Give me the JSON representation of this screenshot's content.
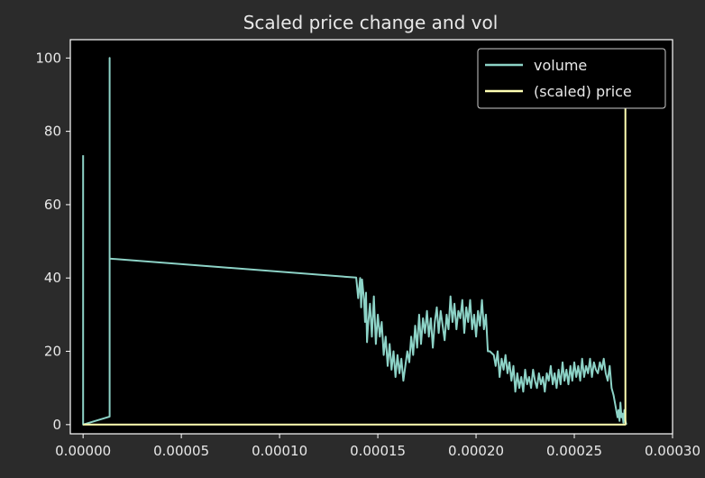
{
  "chart_data": {
    "type": "line",
    "title": "Scaled price change and vol",
    "xlabel": "",
    "ylabel": "",
    "xlim": [
      -6.5e-06,
      0.0003
    ],
    "ylim": [
      -2.5,
      105
    ],
    "grid": false,
    "legend_position": "top-right",
    "x_ticks": [
      0,
      5e-05,
      0.0001,
      0.00015,
      0.0002,
      0.00025,
      0.0003
    ],
    "x_tick_labels": [
      "0.00000",
      "0.00005",
      "0.00010",
      "0.00015",
      "0.00020",
      "0.00025",
      "0.00030"
    ],
    "y_ticks": [
      0,
      20,
      40,
      60,
      80,
      100
    ],
    "y_tick_labels": [
      "0",
      "20",
      "40",
      "60",
      "80",
      "100"
    ],
    "colors": {
      "figure_background": "#2b2b2b",
      "axes_background": "#000000",
      "axes_edge": "#ffffff",
      "text": "#e8e8e8"
    },
    "series": [
      {
        "name": "volume",
        "color": "#8dd3c7",
        "points": [
          [
            0,
            73.5
          ],
          [
            0,
            0
          ],
          [
            1.35e-05,
            2.2
          ],
          [
            1.35e-05,
            100
          ],
          [
            1.35e-05,
            45.3
          ],
          [
            0.000139,
            40.1
          ],
          [
            0.00014,
            34.5
          ],
          [
            0.000141,
            40
          ],
          [
            0.0001415,
            32
          ],
          [
            0.000142,
            39.6
          ],
          [
            0.000143,
            34
          ],
          [
            0.0001435,
            28
          ],
          [
            0.000144,
            36
          ],
          [
            0.0001445,
            22.5
          ],
          [
            0.000145,
            27
          ],
          [
            0.000146,
            33
          ],
          [
            0.000147,
            24
          ],
          [
            0.000148,
            35
          ],
          [
            0.000149,
            22
          ],
          [
            0.00015,
            30
          ],
          [
            0.000151,
            24
          ],
          [
            0.000152,
            28
          ],
          [
            0.000153,
            19
          ],
          [
            0.000154,
            24
          ],
          [
            0.000155,
            16
          ],
          [
            0.000156,
            22
          ],
          [
            0.000157,
            15
          ],
          [
            0.000158,
            20
          ],
          [
            0.000159,
            13
          ],
          [
            0.00016,
            19
          ],
          [
            0.000161,
            14
          ],
          [
            0.000162,
            18
          ],
          [
            0.000163,
            12
          ],
          [
            0.000164,
            16
          ],
          [
            0.000165,
            20
          ],
          [
            0.000166,
            17
          ],
          [
            0.000167,
            24
          ],
          [
            0.000168,
            19
          ],
          [
            0.000169,
            27
          ],
          [
            0.00017,
            21
          ],
          [
            0.000171,
            30
          ],
          [
            0.000172,
            22
          ],
          [
            0.000173,
            29
          ],
          [
            0.000174,
            25
          ],
          [
            0.000175,
            31
          ],
          [
            0.000176,
            24
          ],
          [
            0.000177,
            29
          ],
          [
            0.000178,
            21
          ],
          [
            0.000179,
            28
          ],
          [
            0.00018,
            32
          ],
          [
            0.000181,
            25
          ],
          [
            0.000182,
            31
          ],
          [
            0.000183,
            27
          ],
          [
            0.000184,
            23
          ],
          [
            0.000185,
            30
          ],
          [
            0.000186,
            26
          ],
          [
            0.000187,
            35
          ],
          [
            0.000188,
            28
          ],
          [
            0.000189,
            33
          ],
          [
            0.00019,
            26
          ],
          [
            0.000191,
            31
          ],
          [
            0.000192,
            29
          ],
          [
            0.000193,
            34
          ],
          [
            0.000194,
            25
          ],
          [
            0.000195,
            32
          ],
          [
            0.000196,
            28
          ],
          [
            0.000197,
            34
          ],
          [
            0.000198,
            26
          ],
          [
            0.000199,
            30
          ],
          [
            0.0002,
            24
          ],
          [
            0.000201,
            31
          ],
          [
            0.000202,
            27
          ],
          [
            0.000203,
            34
          ],
          [
            0.000204,
            26
          ],
          [
            0.000205,
            30
          ],
          [
            0.000206,
            20
          ],
          [
            0.000207,
            20
          ],
          [
            0.000209,
            19
          ],
          [
            0.00021,
            16
          ],
          [
            0.000211,
            20
          ],
          [
            0.000212,
            13
          ],
          [
            0.000213,
            18
          ],
          [
            0.000214,
            15
          ],
          [
            0.000215,
            19
          ],
          [
            0.000216,
            14
          ],
          [
            0.000217,
            17
          ],
          [
            0.000218,
            12
          ],
          [
            0.000219,
            16
          ],
          [
            0.00022,
            9
          ],
          [
            0.000221,
            14
          ],
          [
            0.000222,
            10
          ],
          [
            0.000223,
            13
          ],
          [
            0.000224,
            9
          ],
          [
            0.000225,
            15
          ],
          [
            0.000226,
            11
          ],
          [
            0.000227,
            13
          ],
          [
            0.000228,
            10
          ],
          [
            0.000229,
            15
          ],
          [
            0.00023,
            12
          ],
          [
            0.000231,
            10
          ],
          [
            0.000232,
            14
          ],
          [
            0.000233,
            11
          ],
          [
            0.000234,
            13
          ],
          [
            0.000235,
            9
          ],
          [
            0.000236,
            14
          ],
          [
            0.000237,
            12
          ],
          [
            0.000238,
            16
          ],
          [
            0.000239,
            11
          ],
          [
            0.00024,
            14
          ],
          [
            0.000241,
            10
          ],
          [
            0.000242,
            15
          ],
          [
            0.000243,
            11
          ],
          [
            0.000244,
            17
          ],
          [
            0.000245,
            12
          ],
          [
            0.000246,
            15
          ],
          [
            0.000247,
            11
          ],
          [
            0.000248,
            16
          ],
          [
            0.000249,
            12
          ],
          [
            0.00025,
            17
          ],
          [
            0.000251,
            13
          ],
          [
            0.000252,
            16
          ],
          [
            0.000253,
            12
          ],
          [
            0.000254,
            18
          ],
          [
            0.000255,
            13
          ],
          [
            0.000256,
            16
          ],
          [
            0.000257,
            14
          ],
          [
            0.000258,
            18
          ],
          [
            0.000259,
            13
          ],
          [
            0.00026,
            17
          ],
          [
            0.000261,
            15
          ],
          [
            0.000262,
            14
          ],
          [
            0.000263,
            17
          ],
          [
            0.000264,
            15
          ],
          [
            0.000265,
            18
          ],
          [
            0.000266,
            14
          ],
          [
            0.000267,
            12
          ],
          [
            0.000268,
            16
          ],
          [
            0.000269,
            10
          ],
          [
            0.00027,
            8
          ],
          [
            0.000271,
            5
          ],
          [
            0.000272,
            2
          ],
          [
            0.0002725,
            4
          ],
          [
            0.000273,
            1
          ],
          [
            0.0002735,
            6
          ],
          [
            0.000274,
            2
          ],
          [
            0.0002745,
            3
          ],
          [
            0.000275,
            0.5
          ],
          [
            0.0002755,
            4
          ],
          [
            0.000276,
            1
          ],
          [
            0.0002765,
            0
          ]
        ]
      },
      {
        "name": "(scaled) price",
        "color": "#ffffb3",
        "points": [
          [
            0,
            0
          ],
          [
            0.000276,
            0
          ],
          [
            0.000276,
            100
          ]
        ]
      }
    ]
  }
}
